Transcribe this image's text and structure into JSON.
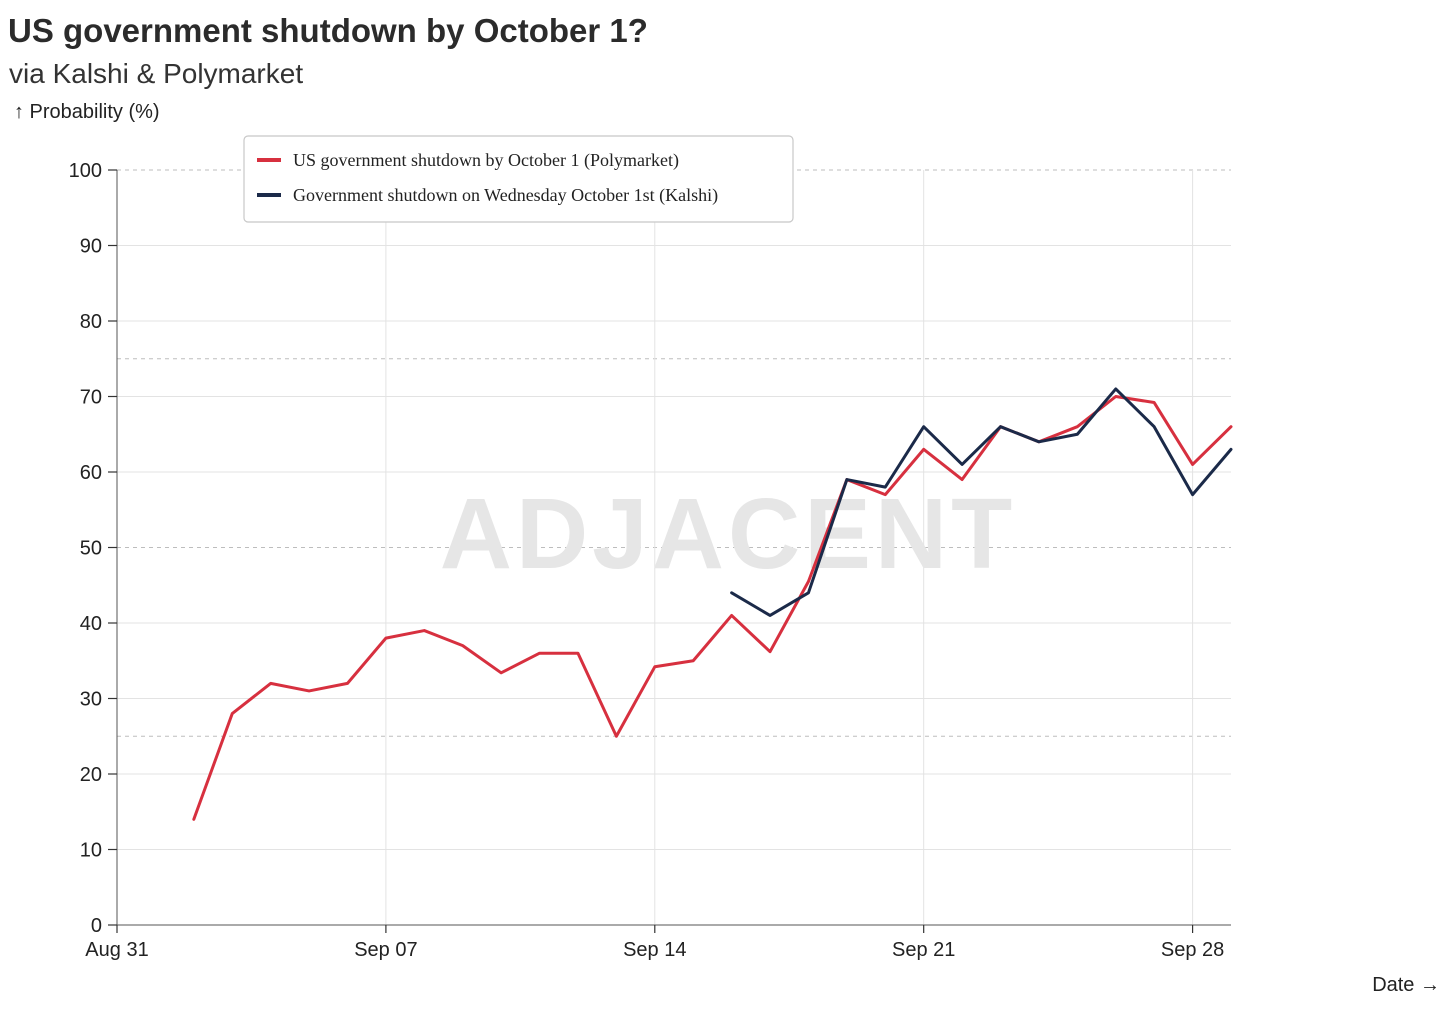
{
  "title": "US government shutdown by October 1?",
  "subtitle": "via Kalshi & Polymarket",
  "watermark": "ADJACENT",
  "chart_data": {
    "type": "line",
    "title": "US government shutdown by October 1?",
    "subtitle": "via Kalshi & Polymarket",
    "xlabel": "Date →",
    "ylabel": "↑ Probability (%)",
    "xlim": [
      "2025-08-31",
      "2025-09-29"
    ],
    "ylim": [
      0,
      100
    ],
    "x_ticks": [
      {
        "date": "2025-08-31",
        "label": "Aug 31"
      },
      {
        "date": "2025-09-07",
        "label": "Sep 07"
      },
      {
        "date": "2025-09-14",
        "label": "Sep 14"
      },
      {
        "date": "2025-09-21",
        "label": "Sep 21"
      },
      {
        "date": "2025-09-28",
        "label": "Sep 28"
      }
    ],
    "y_ticks": [
      0,
      10,
      20,
      30,
      40,
      50,
      60,
      70,
      80,
      90,
      100
    ],
    "dashed_gridlines": [
      0,
      25,
      50,
      75,
      100
    ],
    "grid": true,
    "legend_position": "top-left",
    "series": [
      {
        "name": "US government shutdown by October 1 (Polymarket)",
        "color": "#d7303f",
        "points": [
          {
            "x": "2025-09-02",
            "y": 14
          },
          {
            "x": "2025-09-03",
            "y": 28
          },
          {
            "x": "2025-09-04",
            "y": 32
          },
          {
            "x": "2025-09-05",
            "y": 31
          },
          {
            "x": "2025-09-06",
            "y": 32
          },
          {
            "x": "2025-09-07",
            "y": 38
          },
          {
            "x": "2025-09-08",
            "y": 39
          },
          {
            "x": "2025-09-09",
            "y": 37
          },
          {
            "x": "2025-09-10",
            "y": 33.4
          },
          {
            "x": "2025-09-11",
            "y": 36
          },
          {
            "x": "2025-09-12",
            "y": 36
          },
          {
            "x": "2025-09-13",
            "y": 25
          },
          {
            "x": "2025-09-14",
            "y": 34.2
          },
          {
            "x": "2025-09-15",
            "y": 35
          },
          {
            "x": "2025-09-16",
            "y": 41
          },
          {
            "x": "2025-09-17",
            "y": 36.2
          },
          {
            "x": "2025-09-18",
            "y": 45.5
          },
          {
            "x": "2025-09-19",
            "y": 59
          },
          {
            "x": "2025-09-20",
            "y": 57
          },
          {
            "x": "2025-09-21",
            "y": 63
          },
          {
            "x": "2025-09-22",
            "y": 59
          },
          {
            "x": "2025-09-23",
            "y": 66
          },
          {
            "x": "2025-09-24",
            "y": 64
          },
          {
            "x": "2025-09-25",
            "y": 66
          },
          {
            "x": "2025-09-26",
            "y": 70
          },
          {
            "x": "2025-09-27",
            "y": 69.2
          },
          {
            "x": "2025-09-28",
            "y": 61
          },
          {
            "x": "2025-09-29",
            "y": 66
          }
        ]
      },
      {
        "name": "Government shutdown on Wednesday October 1st (Kalshi)",
        "color": "#1b2a49",
        "points": [
          {
            "x": "2025-09-16",
            "y": 44
          },
          {
            "x": "2025-09-17",
            "y": 41
          },
          {
            "x": "2025-09-18",
            "y": 44
          },
          {
            "x": "2025-09-19",
            "y": 59
          },
          {
            "x": "2025-09-20",
            "y": 58
          },
          {
            "x": "2025-09-21",
            "y": 66
          },
          {
            "x": "2025-09-22",
            "y": 61
          },
          {
            "x": "2025-09-23",
            "y": 66
          },
          {
            "x": "2025-09-24",
            "y": 64
          },
          {
            "x": "2025-09-25",
            "y": 65
          },
          {
            "x": "2025-09-26",
            "y": 71
          },
          {
            "x": "2025-09-27",
            "y": 66
          },
          {
            "x": "2025-09-28",
            "y": 57
          },
          {
            "x": "2025-09-29",
            "y": 63
          }
        ]
      }
    ]
  }
}
